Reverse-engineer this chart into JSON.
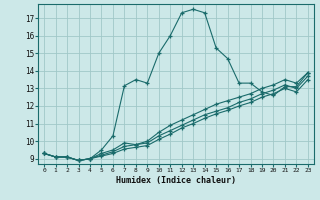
{
  "title": "",
  "xlabel": "Humidex (Indice chaleur)",
  "ylabel": "",
  "bg_color": "#cce8e8",
  "grid_color": "#a0c8c8",
  "line_color": "#1a6b6b",
  "xlim": [
    -0.5,
    23.5
  ],
  "ylim": [
    8.7,
    17.8
  ],
  "xtick_labels": [
    "0",
    "1",
    "2",
    "3",
    "4",
    "5",
    "6",
    "7",
    "8",
    "9",
    "10",
    "11",
    "12",
    "13",
    "14",
    "15",
    "16",
    "17",
    "18",
    "19",
    "20",
    "21",
    "22",
    "23"
  ],
  "ytick_values": [
    9,
    10,
    11,
    12,
    13,
    14,
    15,
    16,
    17
  ],
  "lines": [
    {
      "x": [
        0,
        1,
        2,
        3,
        4,
        5,
        6,
        7,
        8,
        9,
        10,
        11,
        12,
        13,
        14,
        15,
        16,
        17,
        18,
        19,
        20,
        21,
        22,
        23
      ],
      "y": [
        9.3,
        9.1,
        9.1,
        8.9,
        9.0,
        9.5,
        10.3,
        13.15,
        13.5,
        13.3,
        15.0,
        16.0,
        17.3,
        17.5,
        17.3,
        15.3,
        14.7,
        13.3,
        13.3,
        12.8,
        12.6,
        13.1,
        13.1,
        13.9
      ]
    },
    {
      "x": [
        0,
        1,
        2,
        3,
        4,
        5,
        6,
        7,
        8,
        9,
        10,
        11,
        12,
        13,
        14,
        15,
        16,
        17,
        18,
        19,
        20,
        21,
        22,
        23
      ],
      "y": [
        9.3,
        9.1,
        9.1,
        8.9,
        9.0,
        9.3,
        9.5,
        9.9,
        9.8,
        10.0,
        10.5,
        10.9,
        11.2,
        11.5,
        11.8,
        12.1,
        12.3,
        12.5,
        12.7,
        13.0,
        13.2,
        13.5,
        13.3,
        13.9
      ]
    },
    {
      "x": [
        0,
        1,
        2,
        3,
        4,
        5,
        6,
        7,
        8,
        9,
        10,
        11,
        12,
        13,
        14,
        15,
        16,
        17,
        18,
        19,
        20,
        21,
        22,
        23
      ],
      "y": [
        9.3,
        9.1,
        9.1,
        8.9,
        9.0,
        9.2,
        9.4,
        9.7,
        9.8,
        9.9,
        10.3,
        10.6,
        10.9,
        11.2,
        11.5,
        11.7,
        11.9,
        12.2,
        12.4,
        12.7,
        12.9,
        13.2,
        13.0,
        13.7
      ]
    },
    {
      "x": [
        0,
        1,
        2,
        3,
        4,
        5,
        6,
        7,
        8,
        9,
        10,
        11,
        12,
        13,
        14,
        15,
        16,
        17,
        18,
        19,
        20,
        21,
        22,
        23
      ],
      "y": [
        9.3,
        9.1,
        9.1,
        8.9,
        9.0,
        9.15,
        9.3,
        9.55,
        9.65,
        9.75,
        10.1,
        10.4,
        10.75,
        11.0,
        11.3,
        11.55,
        11.75,
        12.0,
        12.2,
        12.5,
        12.7,
        13.0,
        12.8,
        13.5
      ]
    }
  ]
}
